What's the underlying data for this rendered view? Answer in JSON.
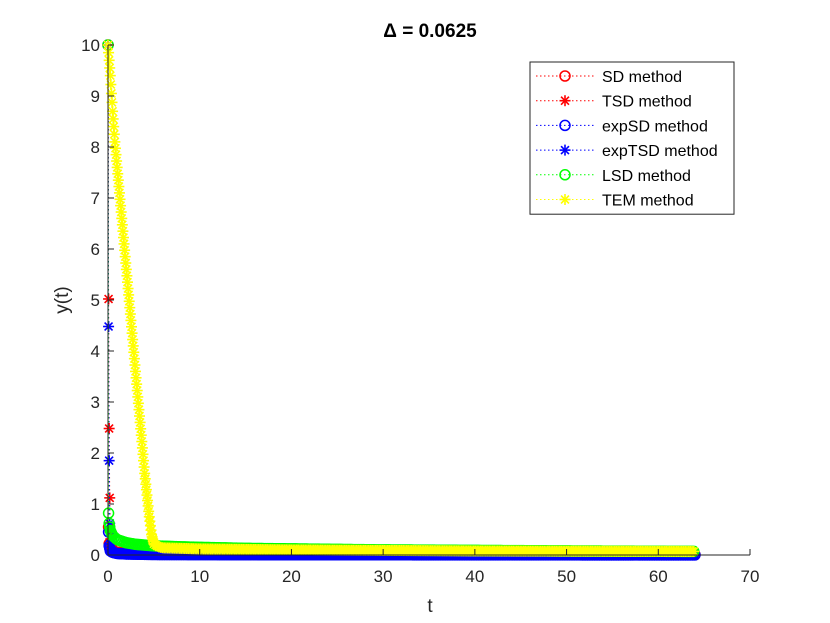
{
  "chart_data": {
    "type": "line",
    "title": "Δ = 0.0625",
    "xlabel": "t",
    "ylabel": "y(t)",
    "xlim": [
      0,
      70
    ],
    "ylim": [
      0,
      10
    ],
    "x_ticks": [
      0,
      10,
      20,
      30,
      40,
      50,
      60,
      70
    ],
    "y_ticks": [
      0,
      1,
      2,
      3,
      4,
      5,
      6,
      7,
      8,
      9,
      10
    ],
    "grid": false,
    "legend_position": "top-right",
    "series": [
      {
        "name": "SD method",
        "color": "#ff0000",
        "marker": "circle",
        "linestyle": "dotted",
        "points": [
          [
            0,
            10
          ],
          [
            0.0625,
            0.55
          ],
          [
            0.125,
            0.22
          ],
          [
            0.25,
            0.12
          ],
          [
            0.5,
            0.08
          ],
          [
            1,
            0.05
          ],
          [
            2,
            0.03
          ],
          [
            5,
            0.02
          ],
          [
            10,
            0.015
          ],
          [
            20,
            0.01
          ],
          [
            40,
            0.008
          ],
          [
            64,
            0.006
          ]
        ]
      },
      {
        "name": "TSD method",
        "color": "#ff0000",
        "marker": "star",
        "linestyle": "dotted",
        "points": [
          [
            0,
            10
          ],
          [
            0.0625,
            5.02
          ],
          [
            0.125,
            2.48
          ],
          [
            0.1875,
            1.12
          ],
          [
            0.25,
            0.45
          ],
          [
            0.375,
            0.18
          ],
          [
            0.5,
            0.1
          ],
          [
            1,
            0.06
          ],
          [
            2,
            0.04
          ],
          [
            5,
            0.02
          ],
          [
            10,
            0.015
          ],
          [
            20,
            0.01
          ],
          [
            40,
            0.008
          ],
          [
            64,
            0.006
          ]
        ]
      },
      {
        "name": "expSD method",
        "color": "#0000ff",
        "marker": "circle",
        "linestyle": "dotted",
        "points": [
          [
            0,
            10
          ],
          [
            0.0625,
            0.45
          ],
          [
            0.125,
            0.18
          ],
          [
            0.25,
            0.08
          ],
          [
            0.5,
            0.05
          ],
          [
            1,
            0.03
          ],
          [
            2,
            0.02
          ],
          [
            5,
            0.01
          ],
          [
            10,
            0.008
          ],
          [
            20,
            0.005
          ],
          [
            40,
            0.003
          ],
          [
            64,
            0.002
          ]
        ]
      },
      {
        "name": "expTSD method",
        "color": "#0000ff",
        "marker": "star",
        "linestyle": "dotted",
        "points": [
          [
            0,
            10
          ],
          [
            0.0625,
            4.48
          ],
          [
            0.125,
            1.85
          ],
          [
            0.1875,
            0.62
          ],
          [
            0.25,
            0.22
          ],
          [
            0.375,
            0.08
          ],
          [
            0.5,
            0.05
          ],
          [
            1,
            0.03
          ],
          [
            2,
            0.02
          ],
          [
            5,
            0.01
          ],
          [
            10,
            0.008
          ],
          [
            20,
            0.005
          ],
          [
            40,
            0.003
          ],
          [
            64,
            0.002
          ]
        ]
      },
      {
        "name": "LSD method",
        "color": "#00ff00",
        "marker": "circle",
        "linestyle": "dotted",
        "points": [
          [
            0,
            10
          ],
          [
            0.0625,
            0.82
          ],
          [
            0.125,
            0.62
          ],
          [
            0.25,
            0.48
          ],
          [
            0.5,
            0.38
          ],
          [
            1,
            0.3
          ],
          [
            2,
            0.24
          ],
          [
            3,
            0.21
          ],
          [
            5,
            0.18
          ],
          [
            8,
            0.16
          ],
          [
            10,
            0.15
          ],
          [
            15,
            0.13
          ],
          [
            20,
            0.12
          ],
          [
            30,
            0.1
          ],
          [
            40,
            0.09
          ],
          [
            50,
            0.08
          ],
          [
            64,
            0.07
          ]
        ]
      },
      {
        "name": "TEM method",
        "color": "#ffff00",
        "marker": "star",
        "linestyle": "dotted",
        "points": [
          [
            0,
            10
          ],
          [
            0.25,
            9.4
          ],
          [
            0.5,
            8.7
          ],
          [
            0.75,
            8.1
          ],
          [
            1,
            7.6
          ],
          [
            1.5,
            6.6
          ],
          [
            2,
            5.6
          ],
          [
            2.5,
            4.6
          ],
          [
            3,
            3.6
          ],
          [
            3.5,
            2.6
          ],
          [
            4,
            1.6
          ],
          [
            4.5,
            0.75
          ],
          [
            4.75,
            0.4
          ],
          [
            5,
            0.22
          ],
          [
            5.5,
            0.16
          ],
          [
            6,
            0.14
          ],
          [
            8,
            0.13
          ],
          [
            10,
            0.12
          ],
          [
            20,
            0.1
          ],
          [
            30,
            0.09
          ],
          [
            40,
            0.08
          ],
          [
            50,
            0.075
          ],
          [
            64,
            0.07
          ]
        ]
      }
    ]
  }
}
